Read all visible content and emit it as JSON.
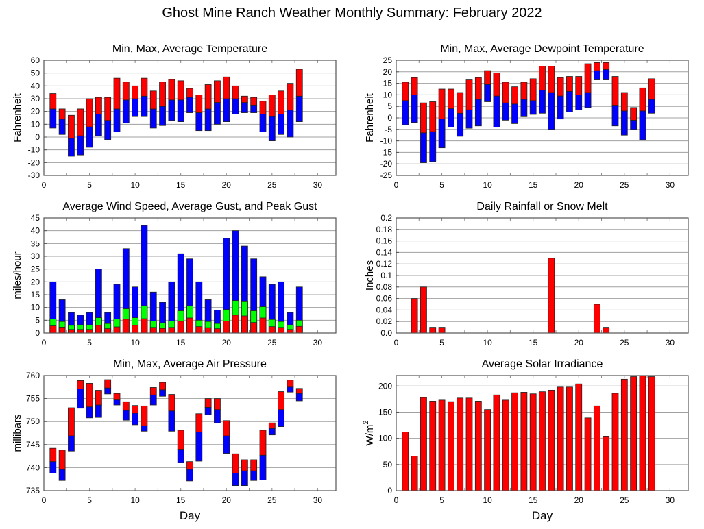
{
  "title": "Ghost Mine Ranch Weather Monthly Summary: February 2022",
  "colors": {
    "red": "#ff0000",
    "blue": "#0000ff",
    "green": "#00ff00"
  },
  "chart_data": [
    {
      "id": "temp",
      "type": "bar",
      "subtype": "floating-range",
      "title": "Min, Max, Average Temperature",
      "xlabel": "",
      "ylabel": "Fahrenheit",
      "xlim": [
        0,
        32
      ],
      "ylim": [
        -30,
        60
      ],
      "xticks": [
        0,
        5,
        10,
        15,
        20,
        25,
        30
      ],
      "yticks": [
        -30,
        -20,
        -10,
        0,
        10,
        20,
        30,
        40,
        50,
        60
      ],
      "grid": true,
      "x": [
        1,
        2,
        3,
        4,
        5,
        6,
        7,
        8,
        9,
        10,
        11,
        12,
        13,
        14,
        15,
        16,
        17,
        18,
        19,
        20,
        21,
        22,
        23,
        24,
        25,
        26,
        27,
        28
      ],
      "series": [
        {
          "name": "Min",
          "values": [
            7,
            2,
            -15,
            -14,
            -8,
            1,
            -2,
            4,
            11,
            16,
            16,
            7,
            9,
            13,
            12,
            19,
            5,
            5,
            10,
            12,
            18,
            19,
            19,
            4,
            -3,
            2,
            0,
            12
          ]
        },
        {
          "name": "Average",
          "values": [
            22,
            14,
            -1,
            1,
            8,
            18,
            13,
            22,
            29,
            30,
            32,
            22,
            24,
            29,
            29,
            31,
            19,
            22,
            27,
            30,
            30,
            27,
            25,
            18,
            16,
            18,
            21,
            32
          ]
        },
        {
          "name": "Max",
          "values": [
            34,
            22,
            17,
            22,
            30,
            31,
            31,
            46,
            43,
            40,
            46,
            36,
            43,
            45,
            44,
            38,
            33,
            41,
            44,
            47,
            40,
            32,
            31,
            28,
            33,
            36,
            42,
            53
          ]
        }
      ]
    },
    {
      "id": "dew",
      "type": "bar",
      "subtype": "floating-range",
      "title": "Min, Max, Average Dewpoint Temperature",
      "xlabel": "",
      "ylabel": "Fahrenheit",
      "xlim": [
        0,
        32
      ],
      "ylim": [
        -25,
        25
      ],
      "xticks": [
        0,
        5,
        10,
        15,
        20,
        25,
        30
      ],
      "yticks": [
        -25,
        -20,
        -15,
        -10,
        -5,
        0,
        5,
        10,
        15,
        20,
        25
      ],
      "grid": true,
      "x": [
        1,
        2,
        3,
        4,
        5,
        6,
        7,
        8,
        9,
        10,
        11,
        12,
        13,
        14,
        15,
        16,
        17,
        18,
        19,
        20,
        21,
        22,
        23,
        24,
        25,
        26,
        27,
        28
      ],
      "series": [
        {
          "name": "Min",
          "values": [
            -3,
            -2,
            -19.5,
            -19,
            -13,
            -4,
            -8,
            -4.5,
            -3.5,
            7,
            -4,
            -1,
            -2.5,
            0.5,
            1.5,
            2,
            -5,
            -0.5,
            2.5,
            3.5,
            4.5,
            16.5,
            16.5,
            -3.5,
            -7.5,
            -5,
            -9.5,
            2
          ]
        },
        {
          "name": "Average",
          "values": [
            7.5,
            10,
            -6.5,
            -6,
            -0.5,
            4,
            2,
            3.5,
            8,
            14.5,
            9.5,
            6.5,
            6,
            8,
            7.5,
            12,
            11,
            9.5,
            11.5,
            10,
            11,
            20.5,
            21,
            5.5,
            3,
            -1,
            3,
            8
          ]
        },
        {
          "name": "Max",
          "values": [
            15.5,
            17.5,
            6.5,
            7,
            12.5,
            12.5,
            11,
            16.5,
            17.5,
            20.5,
            19.5,
            15.5,
            13.5,
            15.5,
            17,
            22.5,
            22.5,
            17.5,
            18,
            18,
            23.5,
            24,
            24,
            18,
            11,
            4.5,
            13,
            17
          ]
        }
      ]
    },
    {
      "id": "wind",
      "type": "bar",
      "subtype": "overlaid",
      "title": "Average Wind Speed, Average Gust, and Peak Gust",
      "xlabel": "",
      "ylabel": "miles/hour",
      "xlim": [
        0,
        32
      ],
      "ylim": [
        0,
        45
      ],
      "xticks": [
        0,
        5,
        10,
        15,
        20,
        25,
        30
      ],
      "yticks": [
        0,
        5,
        10,
        15,
        20,
        25,
        30,
        35,
        40,
        45
      ],
      "grid": true,
      "x": [
        1,
        2,
        3,
        4,
        5,
        6,
        7,
        8,
        9,
        10,
        11,
        12,
        13,
        14,
        15,
        16,
        17,
        18,
        19,
        20,
        21,
        22,
        23,
        24,
        25,
        26,
        27,
        28
      ],
      "series": [
        {
          "name": "Peak Gust",
          "color": "blue",
          "values": [
            20,
            13,
            8,
            7,
            8,
            25,
            8,
            19,
            33,
            18,
            42,
            16,
            12,
            20,
            31,
            29,
            20,
            13,
            9,
            37,
            40,
            34,
            29,
            22,
            19,
            20,
            8,
            18
          ]
        },
        {
          "name": "Average Gust",
          "color": "green",
          "values": [
            5.5,
            4.5,
            3,
            3.2,
            3.2,
            6,
            3.7,
            5.5,
            9.5,
            6,
            10.7,
            4.7,
            4,
            4.7,
            8.7,
            10.7,
            5,
            4.5,
            3.7,
            9.2,
            12.7,
            12.5,
            8.7,
            10.3,
            5.3,
            4.5,
            3.2,
            5
          ]
        },
        {
          "name": "Average Wind Speed",
          "color": "red",
          "values": [
            2.8,
            2.3,
            1.4,
            1.4,
            1.4,
            3,
            1.7,
            2.4,
            5.4,
            3,
            5.6,
            2.2,
            1.8,
            2.2,
            4.6,
            5.9,
            2.5,
            2.1,
            1.7,
            4.7,
            7,
            6.7,
            4.1,
            5.9,
            2.5,
            2.2,
            1.4,
            2.6
          ]
        }
      ]
    },
    {
      "id": "rain",
      "type": "bar",
      "title": "Daily Rainfall or Snow Melt",
      "xlabel": "",
      "ylabel": "Inches",
      "xlim": [
        0,
        32
      ],
      "ylim": [
        0,
        0.2
      ],
      "xticks": [
        0,
        5,
        10,
        15,
        20,
        25,
        30
      ],
      "yticks": [
        "0.0",
        "0.02",
        "0.04",
        "0.06",
        "0.08",
        "0.1",
        "0.12",
        "0.14",
        "0.16",
        "0.18",
        "0.2"
      ],
      "grid": true,
      "x": [
        2,
        3,
        4,
        5,
        17,
        22,
        23
      ],
      "values": [
        0.06,
        0.08,
        0.01,
        0.01,
        0.13,
        0.05,
        0.01
      ]
    },
    {
      "id": "pressure",
      "type": "bar",
      "subtype": "floating-range",
      "title": "Min, Max, Average Air Pressure",
      "xlabel": "Day",
      "ylabel": "millibars",
      "xlim": [
        0,
        32
      ],
      "ylim": [
        735,
        760
      ],
      "xticks": [
        0,
        5,
        10,
        15,
        20,
        25,
        30
      ],
      "yticks": [
        735,
        740,
        745,
        750,
        755,
        760
      ],
      "grid": true,
      "x": [
        1,
        2,
        3,
        4,
        5,
        6,
        7,
        8,
        9,
        10,
        11,
        12,
        13,
        14,
        15,
        16,
        17,
        18,
        19,
        20,
        21,
        22,
        23,
        24,
        25,
        26,
        27,
        28
      ],
      "series": [
        {
          "name": "Min",
          "values": [
            738.8,
            737.2,
            743.6,
            752.9,
            750.8,
            750.9,
            756,
            753.6,
            750.3,
            749.3,
            747.9,
            753.6,
            755.5,
            747.9,
            741.1,
            737.1,
            741.4,
            751.5,
            749.7,
            743.1,
            736.1,
            736.1,
            737.2,
            737.3,
            747.1,
            748.9,
            756.4,
            754.5
          ]
        },
        {
          "name": "Average",
          "values": [
            741.3,
            739.6,
            746.9,
            757.1,
            753.2,
            753.6,
            757.3,
            754.7,
            752.4,
            751.8,
            749.1,
            755.8,
            756.9,
            752.3,
            744,
            739.6,
            747.7,
            753.1,
            752.6,
            746.9,
            738.8,
            739.3,
            739.3,
            742.7,
            748.5,
            752.6,
            757.5,
            756.1
          ]
        },
        {
          "name": "Max",
          "values": [
            744.2,
            743.8,
            753,
            758.9,
            758.3,
            756.8,
            759.1,
            756.1,
            754.3,
            753.5,
            753.4,
            757.4,
            758.5,
            755.9,
            748.1,
            741.3,
            751.7,
            755,
            755,
            750.2,
            743,
            741.7,
            741.7,
            748.1,
            749.7,
            756.5,
            759,
            757.2
          ]
        }
      ]
    },
    {
      "id": "solar",
      "type": "bar",
      "title": "Average Solar Irradiance",
      "xlabel": "Day",
      "ylabel": "W/m",
      "ylabel_sup": "2",
      "xlim": [
        0,
        32
      ],
      "ylim": [
        0,
        220
      ],
      "xticks": [
        0,
        5,
        10,
        15,
        20,
        25,
        30
      ],
      "yticks": [
        0,
        50,
        100,
        150,
        200
      ],
      "grid": true,
      "x": [
        1,
        2,
        3,
        4,
        5,
        6,
        7,
        8,
        9,
        10,
        11,
        12,
        13,
        14,
        15,
        16,
        17,
        18,
        19,
        20,
        21,
        22,
        23,
        24,
        25,
        26,
        27,
        28
      ],
      "values": [
        112,
        66,
        178,
        171,
        173,
        170,
        177,
        177,
        171,
        155,
        183,
        173,
        187,
        188,
        185,
        189,
        192,
        198,
        198,
        204,
        139,
        162,
        103,
        186,
        213,
        218,
        220,
        218
      ]
    }
  ]
}
